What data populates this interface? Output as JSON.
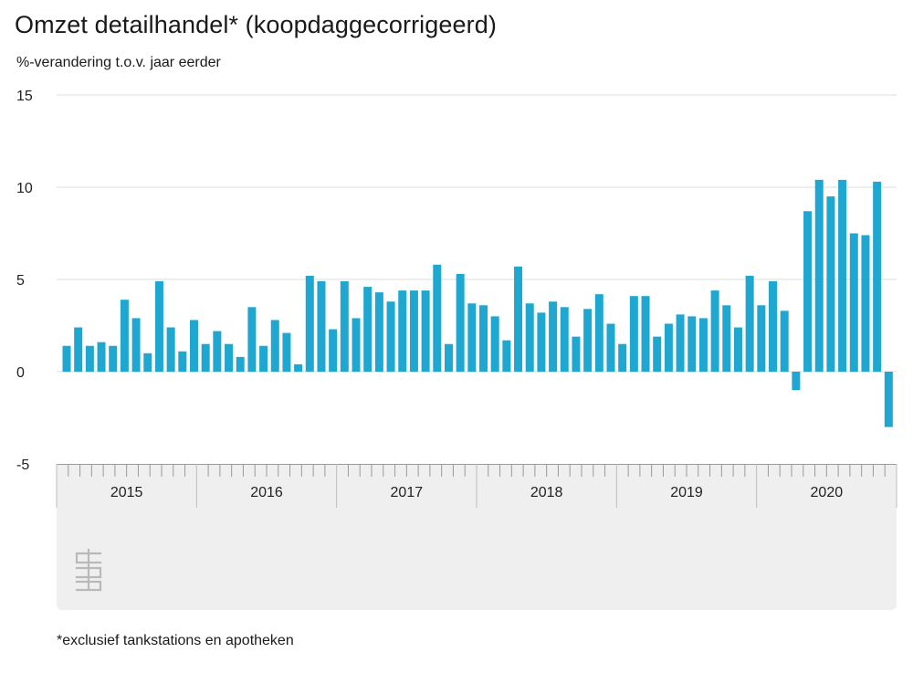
{
  "header": {
    "title": "Omzet detailhandel* (koopdaggecorrigeerd)",
    "subtitle": "%-verandering t.o.v. jaar eerder"
  },
  "footnote": "*exclusief tankstations en apotheken",
  "colors": {
    "bar": "#1ea7d1",
    "panel": "#efefef",
    "grid": "#dcdcdc",
    "axis": "#9a9a9a"
  },
  "logo_icon": "cbs-logo-icon",
  "chart_data": {
    "type": "bar",
    "title": "Omzet detailhandel* (koopdaggecorrigeerd)",
    "subtitle": "%-verandering t.o.v. jaar eerder",
    "ylim": [
      -5,
      15
    ],
    "yticks": [
      15,
      10,
      5,
      0,
      -5
    ],
    "grid": true,
    "year_labels": [
      "2015",
      "2016",
      "2017",
      "2018",
      "2019",
      "2020"
    ],
    "months_per_year": 12,
    "values": [
      1.4,
      2.4,
      1.4,
      1.6,
      1.4,
      3.9,
      2.9,
      1.0,
      4.9,
      2.4,
      1.1,
      2.8,
      1.5,
      2.2,
      1.5,
      0.8,
      3.5,
      1.4,
      2.8,
      2.1,
      0.4,
      5.2,
      4.9,
      2.3,
      4.9,
      2.9,
      4.6,
      4.3,
      3.8,
      4.4,
      4.4,
      4.4,
      5.8,
      1.5,
      5.3,
      3.7,
      3.6,
      3.0,
      1.7,
      5.7,
      3.7,
      3.2,
      3.8,
      3.5,
      1.9,
      3.4,
      4.2,
      2.6,
      1.5,
      4.1,
      4.1,
      1.9,
      2.6,
      3.1,
      3.0,
      2.9,
      4.4,
      3.6,
      2.4,
      5.2,
      3.6,
      4.9,
      3.3,
      -1.0,
      8.7,
      10.4,
      9.5,
      10.4,
      7.5,
      7.4,
      10.3,
      -3.0
    ]
  }
}
